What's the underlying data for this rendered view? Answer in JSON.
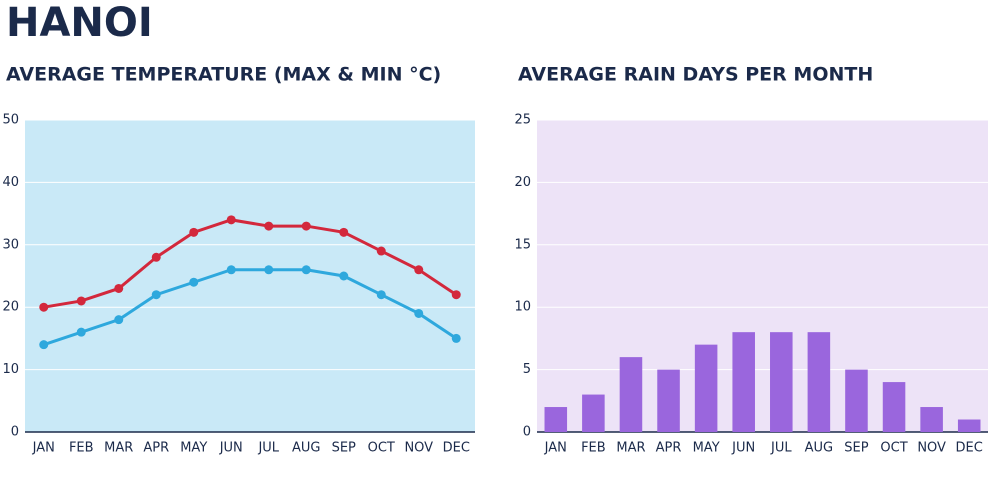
{
  "title": "HANOI",
  "chart_data": [
    {
      "type": "line",
      "title": "AVERAGE TEMPERATURE (MAX & MIN °C)",
      "categories": [
        "JAN",
        "FEB",
        "MAR",
        "APR",
        "MAY",
        "JUN",
        "JUL",
        "AUG",
        "SEP",
        "OCT",
        "NOV",
        "DEC"
      ],
      "series": [
        {
          "color": "#d3283c",
          "values": [
            20,
            21,
            23,
            28,
            32,
            34,
            33,
            33,
            32,
            29,
            26,
            22
          ]
        },
        {
          "color": "#2ea8dd",
          "values": [
            14,
            16,
            18,
            22,
            24,
            26,
            26,
            26,
            25,
            22,
            19,
            15
          ]
        }
      ],
      "ylim": [
        0,
        50
      ],
      "yticks": [
        0,
        10,
        20,
        30,
        40,
        50
      ],
      "grid": true,
      "background": "#c9e9f7"
    },
    {
      "type": "bar",
      "title": "AVERAGE RAIN DAYS PER MONTH",
      "categories": [
        "JAN",
        "FEB",
        "MAR",
        "APR",
        "MAY",
        "JUN",
        "JUL",
        "AUG",
        "SEP",
        "OCT",
        "NOV",
        "DEC"
      ],
      "values": [
        2,
        3,
        6,
        5,
        7,
        8,
        8,
        8,
        5,
        4,
        2,
        1
      ],
      "color": "#9a66dd",
      "ylim": [
        0,
        25
      ],
      "yticks": [
        0,
        5,
        10,
        15,
        20,
        25
      ],
      "grid": true,
      "background": "#ede3f7"
    }
  ]
}
